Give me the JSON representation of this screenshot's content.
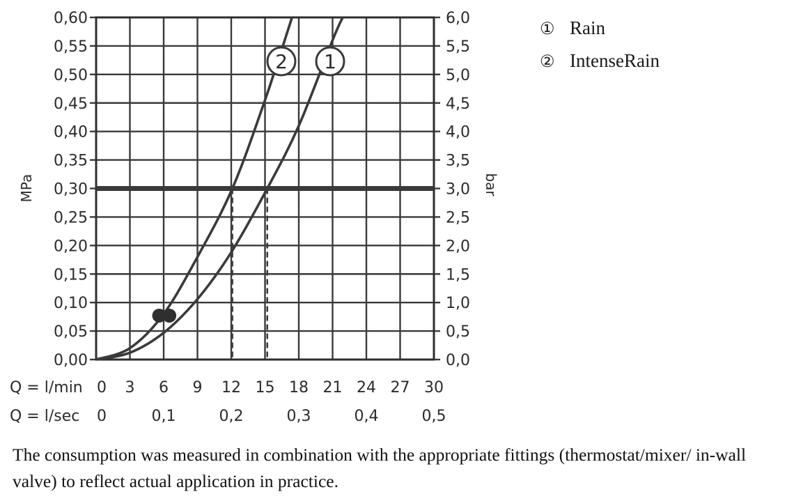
{
  "chart_data": {
    "type": "line",
    "x_rows": [
      {
        "prefix": "Q = l/min",
        "ticks": [
          "0",
          "3",
          "6",
          "9",
          "12",
          "15",
          "18",
          "21",
          "24",
          "27",
          "30"
        ]
      },
      {
        "prefix": "Q = l/sec",
        "ticks": [
          "0",
          "0,1",
          "0,2",
          "0,3",
          "0,4",
          "0,5"
        ]
      }
    ],
    "y_left": {
      "label": "MPa",
      "ticks": [
        "0,00",
        "0,05",
        "0,10",
        "0,15",
        "0,20",
        "0,25",
        "0,30",
        "0,35",
        "0,40",
        "0,45",
        "0,50",
        "0,55",
        "0,60"
      ],
      "range": [
        0,
        0.6
      ]
    },
    "y_right": {
      "label": "bar",
      "ticks": [
        "0,0",
        "0,5",
        "1,0",
        "1,5",
        "2,0",
        "2,5",
        "3,0",
        "3,5",
        "4,0",
        "4,5",
        "5,0",
        "5,5",
        "6,0"
      ],
      "range": [
        0,
        6.0
      ]
    },
    "x_range_lmin": [
      0,
      30
    ],
    "grid": true,
    "reference_line": {
      "y_mpa": 0.3
    },
    "series": [
      {
        "name": "Rain",
        "marker": "1",
        "drop_line_x": 15.2,
        "points": [
          [
            0,
            0
          ],
          [
            3,
            0.012
          ],
          [
            6,
            0.047
          ],
          [
            9,
            0.106
          ],
          [
            12,
            0.188
          ],
          [
            15.2,
            0.3
          ],
          [
            18,
            0.41
          ],
          [
            21,
            0.56
          ],
          [
            21.9,
            0.6
          ]
        ]
      },
      {
        "name": "IntenseRain",
        "marker": "2",
        "drop_line_x": 12.1,
        "points": [
          [
            0,
            0
          ],
          [
            3,
            0.02
          ],
          [
            6,
            0.08
          ],
          [
            9,
            0.18
          ],
          [
            12.1,
            0.3
          ],
          [
            15,
            0.455
          ],
          [
            17.4,
            0.6
          ]
        ]
      }
    ],
    "dots": [
      [
        5.6,
        0.077
      ],
      [
        6.5,
        0.077
      ]
    ]
  },
  "legend": [
    {
      "symbol": "①",
      "label": "Rain"
    },
    {
      "symbol": "②",
      "label": "IntenseRain"
    }
  ],
  "caption": "The consumption was measured in combination with the appropriate fittings (thermostat/mixer/ in-wall valve) to reflect actual application in practice."
}
